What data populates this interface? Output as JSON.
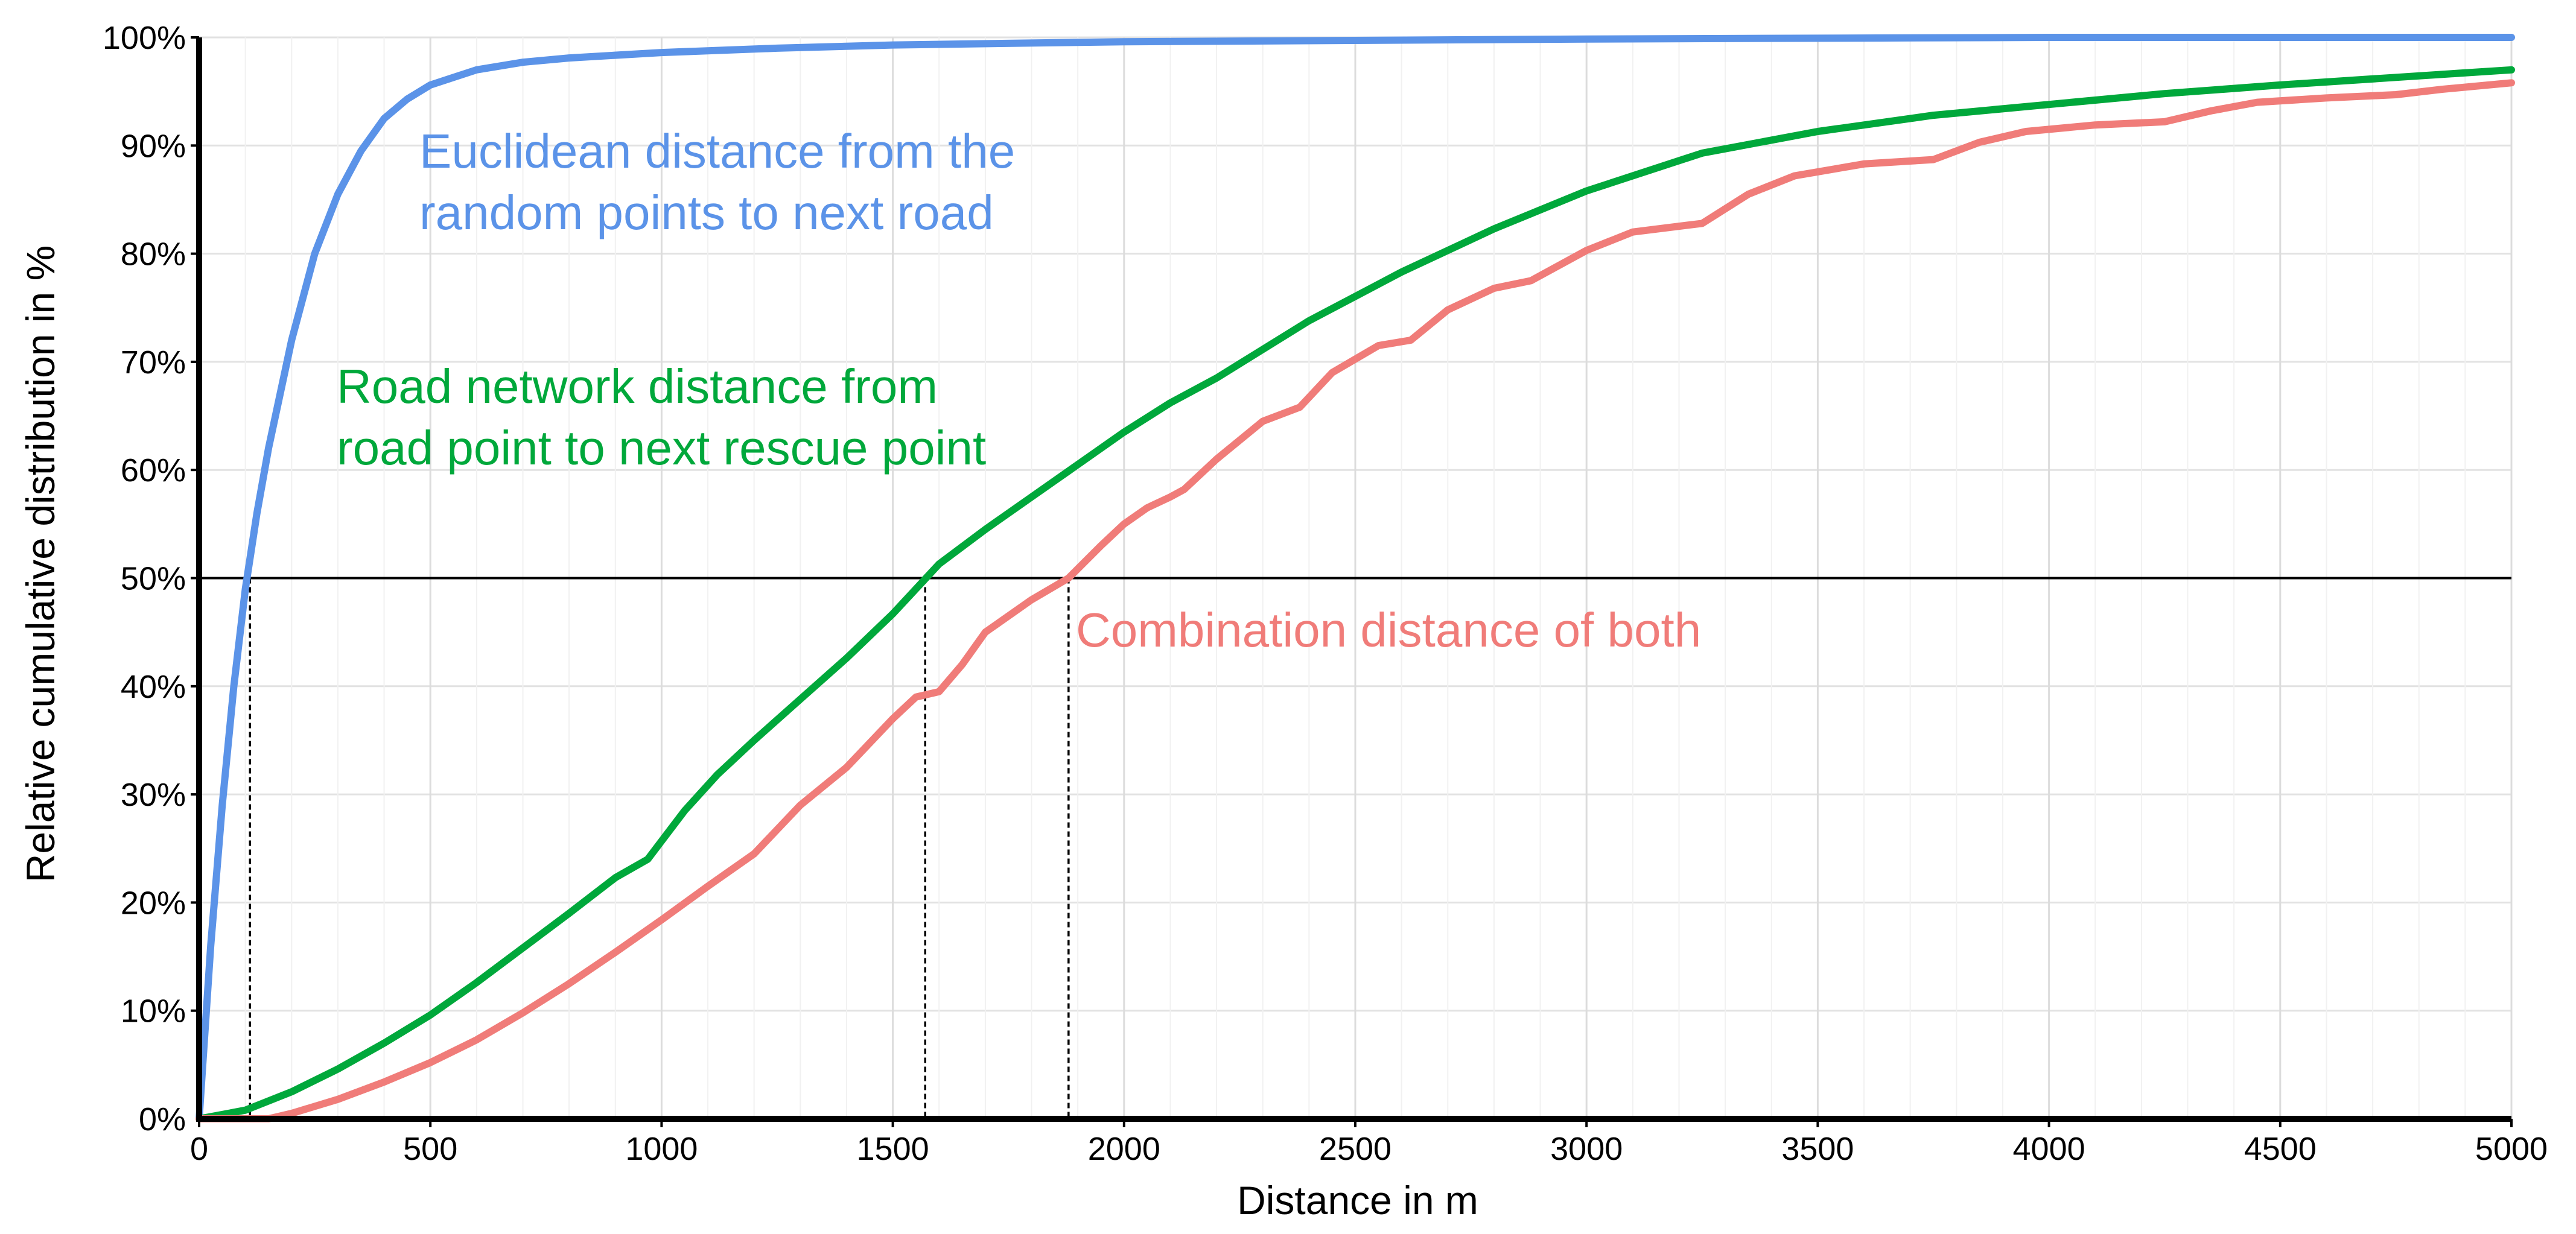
{
  "chart_data": {
    "type": "line",
    "xlabel": "Distance in m",
    "ylabel": "Relative cumulative distribution in %",
    "xlim": [
      0,
      5000
    ],
    "ylim": [
      0,
      100
    ],
    "x_ticks": [
      "0",
      "500",
      "1000",
      "1500",
      "2000",
      "2500",
      "3000",
      "3500",
      "4000",
      "4500",
      "5000"
    ],
    "y_ticks": [
      "0%",
      "10%",
      "20%",
      "30%",
      "40%",
      "50%",
      "60%",
      "70%",
      "80%",
      "90%",
      "100%"
    ],
    "grid": true,
    "series": [
      {
        "color": "#5B93E8",
        "x": [
          0,
          25,
          50,
          75,
          100,
          125,
          150,
          200,
          250,
          300,
          350,
          400,
          450,
          500,
          600,
          700,
          800,
          1000,
          1250,
          1500,
          2000,
          3000,
          4000,
          5000
        ],
        "y": [
          0,
          16,
          29,
          40,
          49,
          56,
          62,
          72,
          80,
          85.5,
          89.5,
          92.5,
          94.3,
          95.6,
          97,
          97.7,
          98.1,
          98.6,
          99,
          99.3,
          99.6,
          99.85,
          100,
          100
        ]
      },
      {
        "color": "#00A83B",
        "x": [
          0,
          100,
          200,
          300,
          400,
          500,
          600,
          700,
          800,
          900,
          970,
          1050,
          1120,
          1200,
          1300,
          1400,
          1500,
          1600,
          1700,
          1800,
          1900,
          2000,
          2100,
          2200,
          2400,
          2600,
          2800,
          3000,
          3250,
          3500,
          3750,
          4000,
          4250,
          4500,
          4750,
          5000
        ],
        "y": [
          0,
          0.8,
          2.5,
          4.6,
          7,
          9.6,
          12.6,
          15.8,
          19,
          22.3,
          24,
          28.5,
          31.8,
          35,
          38.8,
          42.6,
          46.7,
          51.3,
          54.5,
          57.5,
          60.5,
          63.5,
          66.2,
          68.5,
          73.8,
          78.3,
          82.3,
          85.8,
          89.3,
          91.3,
          92.8,
          93.8,
          94.8,
          95.6,
          96.3,
          97
        ]
      },
      {
        "color": "#F07C79",
        "x": [
          0,
          100,
          150,
          200,
          300,
          400,
          500,
          600,
          700,
          800,
          900,
          1000,
          1100,
          1200,
          1300,
          1400,
          1500,
          1550,
          1600,
          1650,
          1700,
          1800,
          1880,
          1950,
          2000,
          2050,
          2100,
          2130,
          2200,
          2300,
          2380,
          2450,
          2550,
          2620,
          2700,
          2800,
          2880,
          3000,
          3100,
          3250,
          3350,
          3450,
          3600,
          3750,
          3850,
          3950,
          4100,
          4250,
          4350,
          4450,
          4600,
          4750,
          4850,
          5000
        ],
        "y": [
          0,
          0,
          0,
          0.5,
          1.8,
          3.4,
          5.2,
          7.3,
          9.8,
          12.5,
          15.4,
          18.4,
          21.5,
          24.5,
          29,
          32.5,
          37,
          39,
          39.5,
          42,
          45,
          48,
          50,
          53,
          55,
          56.5,
          57.5,
          58.2,
          61,
          64.5,
          65.8,
          69,
          71.5,
          72,
          74.8,
          76.8,
          77.5,
          80.3,
          82,
          82.8,
          85.5,
          87.2,
          88.3,
          88.7,
          90.3,
          91.3,
          91.9,
          92.2,
          93.2,
          94,
          94.4,
          94.7,
          95.2,
          95.8
        ]
      }
    ],
    "annotations": [
      {
        "text_lines": [
          "Euclidean distance from the",
          "random points to next road"
        ],
        "color": "#5B93E8"
      },
      {
        "text_lines": [
          "Road network distance from",
          "road point to next rescue point"
        ],
        "color": "#00A83B"
      },
      {
        "text": "Combination distance of both",
        "color": "#F07C79"
      }
    ],
    "reference_line": {
      "y": 50,
      "x_markers": [
        110,
        1570,
        1880
      ]
    }
  }
}
